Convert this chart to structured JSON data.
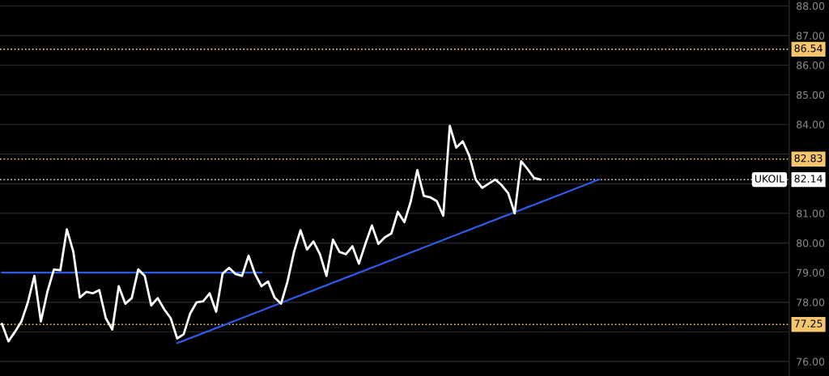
{
  "chart_data": {
    "type": "line",
    "categories": [
      null,
      null,
      null,
      null,
      null,
      null,
      null,
      null,
      null,
      null,
      null,
      null,
      null,
      null,
      null,
      null,
      null,
      null,
      null,
      null,
      null,
      null,
      null,
      null,
      null,
      null,
      null,
      null,
      null,
      null,
      null,
      null,
      null,
      null,
      null,
      null,
      null,
      null,
      null,
      null,
      null,
      null,
      null,
      null,
      null,
      null,
      null,
      null,
      null,
      null,
      null,
      null,
      null,
      null,
      null,
      null,
      null,
      null,
      null,
      null,
      null,
      null,
      null,
      null,
      null,
      null,
      null,
      null,
      null,
      null,
      null,
      null,
      null,
      null,
      null,
      null,
      null,
      null,
      null,
      null,
      null,
      null,
      null,
      null,
      null,
      null,
      null,
      null,
      null,
      null,
      null,
      null,
      null,
      null,
      null,
      null,
      null,
      null,
      null,
      null,
      null,
      null,
      null,
      null,
      null,
      null,
      null,
      null,
      null,
      null,
      null,
      null,
      null,
      null,
      null,
      null,
      null,
      null,
      null,
      null,
      null,
      null
    ],
    "series": [
      {
        "name": "UKOIL",
        "color": "#ffffff",
        "values": [
          77.27,
          76.68,
          77.0,
          77.35,
          78.0,
          78.89,
          77.35,
          78.35,
          79.1,
          79.08,
          80.46,
          79.7,
          78.16,
          78.35,
          78.3,
          78.41,
          77.46,
          77.08,
          78.54,
          77.95,
          78.14,
          79.11,
          78.89,
          77.89,
          78.14,
          77.76,
          77.46,
          76.78,
          76.92,
          77.62,
          78.0,
          78.03,
          78.3,
          77.68,
          78.97,
          79.16,
          78.95,
          78.89,
          79.57,
          78.95,
          78.54,
          78.7,
          78.16,
          77.95,
          78.7,
          79.7,
          80.43,
          79.78,
          80.05,
          79.62,
          78.89,
          80.11,
          79.7,
          79.62,
          79.89,
          79.3,
          79.97,
          80.59,
          79.97,
          80.19,
          80.32,
          81.05,
          80.7,
          81.41,
          82.46,
          81.59,
          81.54,
          81.41,
          80.92,
          83.95,
          83.22,
          83.43,
          82.95,
          82.14,
          81.86,
          82.0,
          82.14,
          81.95,
          81.68,
          81.0,
          82.76,
          82.49,
          82.19,
          82.14,
          null,
          null,
          null,
          null,
          null,
          null,
          null,
          null,
          null,
          null,
          null,
          null,
          null,
          null,
          null,
          null,
          null,
          null,
          null,
          null,
          null,
          null,
          null,
          null,
          null,
          null,
          null,
          null,
          null,
          null,
          null,
          null,
          null,
          null,
          null,
          null,
          null,
          null
        ]
      },
      {
        "type": "line",
        "color": "#2f5bea",
        "values": [
          79.0,
          79.0,
          79.0,
          79.0,
          79.0,
          79.0,
          79.0,
          79.0,
          79.0,
          79.0,
          79.0,
          79.0,
          79.0,
          79.0,
          79.0,
          79.0,
          79.0,
          79.0,
          79.0,
          79.0,
          79.0,
          79.0,
          79.0,
          79.0,
          79.0,
          79.0,
          79.0,
          79.0,
          79.0,
          79.0,
          79.0,
          79.0,
          79.0,
          79.0,
          79.0,
          79.0,
          79.0,
          79.0,
          79.0,
          79.0,
          79.0,
          null,
          null,
          null,
          null,
          null,
          null,
          null,
          null,
          null,
          null,
          null,
          null,
          null,
          null,
          null,
          null,
          null,
          null,
          null,
          null,
          null,
          null,
          null,
          null,
          null,
          null,
          null,
          null,
          null,
          null,
          null,
          null,
          null,
          null,
          null,
          null,
          null,
          null,
          null,
          null,
          null,
          null,
          null,
          null,
          null,
          null,
          null,
          null,
          null,
          null,
          null,
          null,
          null,
          null,
          null,
          null,
          null,
          null,
          null,
          null,
          null,
          null,
          null,
          null,
          null,
          null,
          null,
          null,
          null,
          null,
          null,
          null,
          null,
          null,
          null,
          null,
          null,
          null,
          null,
          null,
          null
        ]
      },
      {
        "type": "line",
        "color": "#2f5bea",
        "values": [
          null,
          null,
          null,
          null,
          null,
          null,
          null,
          null,
          null,
          null,
          null,
          null,
          null,
          null,
          null,
          null,
          null,
          null,
          null,
          null,
          null,
          null,
          null,
          null,
          null,
          null,
          null,
          76.62,
          76.7,
          76.79,
          76.87,
          76.96,
          77.04,
          77.13,
          77.21,
          77.3,
          77.38,
          77.47,
          77.55,
          77.64,
          77.72,
          77.81,
          77.89,
          77.98,
          78.06,
          78.15,
          78.23,
          78.32,
          78.4,
          78.49,
          78.57,
          78.66,
          78.74,
          78.83,
          78.91,
          79.0,
          79.08,
          79.17,
          79.25,
          79.34,
          79.42,
          79.51,
          79.59,
          79.68,
          79.76,
          79.85,
          79.93,
          80.02,
          80.1,
          80.19,
          80.27,
          80.36,
          80.44,
          80.53,
          80.61,
          80.7,
          80.78,
          80.87,
          80.95,
          81.04,
          81.12,
          81.21,
          81.29,
          81.38,
          81.46,
          81.55,
          81.63,
          81.72,
          81.8,
          81.89,
          81.97,
          82.06,
          82.14,
          null,
          null,
          null,
          null,
          null,
          null,
          null,
          null,
          null,
          null,
          null,
          null,
          null,
          null,
          null,
          null,
          null,
          null,
          null,
          null,
          null,
          null,
          null,
          null,
          null,
          null,
          null,
          null,
          null
        ]
      }
    ],
    "ylim": [
      75.51,
      88.2
    ],
    "yticks": [
      {
        "value": 76,
        "label": "76.00"
      },
      {
        "value": 77,
        "label": null
      },
      {
        "value": 78,
        "label": "78.00"
      },
      {
        "value": 79,
        "label": "79.00"
      },
      {
        "value": 80,
        "label": "80.00"
      },
      {
        "value": 81,
        "label": "81.00"
      },
      {
        "value": 82,
        "label": null
      },
      {
        "value": 83,
        "label": null
      },
      {
        "value": 84,
        "label": "84.00"
      },
      {
        "value": 85,
        "label": "85.00"
      },
      {
        "value": 86,
        "label": "86.00"
      },
      {
        "value": 87,
        "label": "87.00"
      },
      {
        "value": 88,
        "label": "88.00"
      }
    ],
    "ref_lines": [
      {
        "axis": "y",
        "value": 86.54,
        "label": "86.54",
        "color": "#f5c66e",
        "line_style": "dotted"
      },
      {
        "axis": "y",
        "value": 82.83,
        "label": "82.83",
        "color": "#f5c66e",
        "line_style": "dotted"
      },
      {
        "axis": "y",
        "value": 82.14,
        "label": "82.14",
        "color": "#bbbbbb",
        "line_style": "dotted"
      },
      {
        "axis": "y",
        "value": 77.25,
        "label": "77.25",
        "color": "#f5c66e",
        "line_style": "dotted"
      }
    ],
    "grid": "y",
    "tick_labels": "y",
    "marker": "none",
    "line_style": "solid"
  }
}
